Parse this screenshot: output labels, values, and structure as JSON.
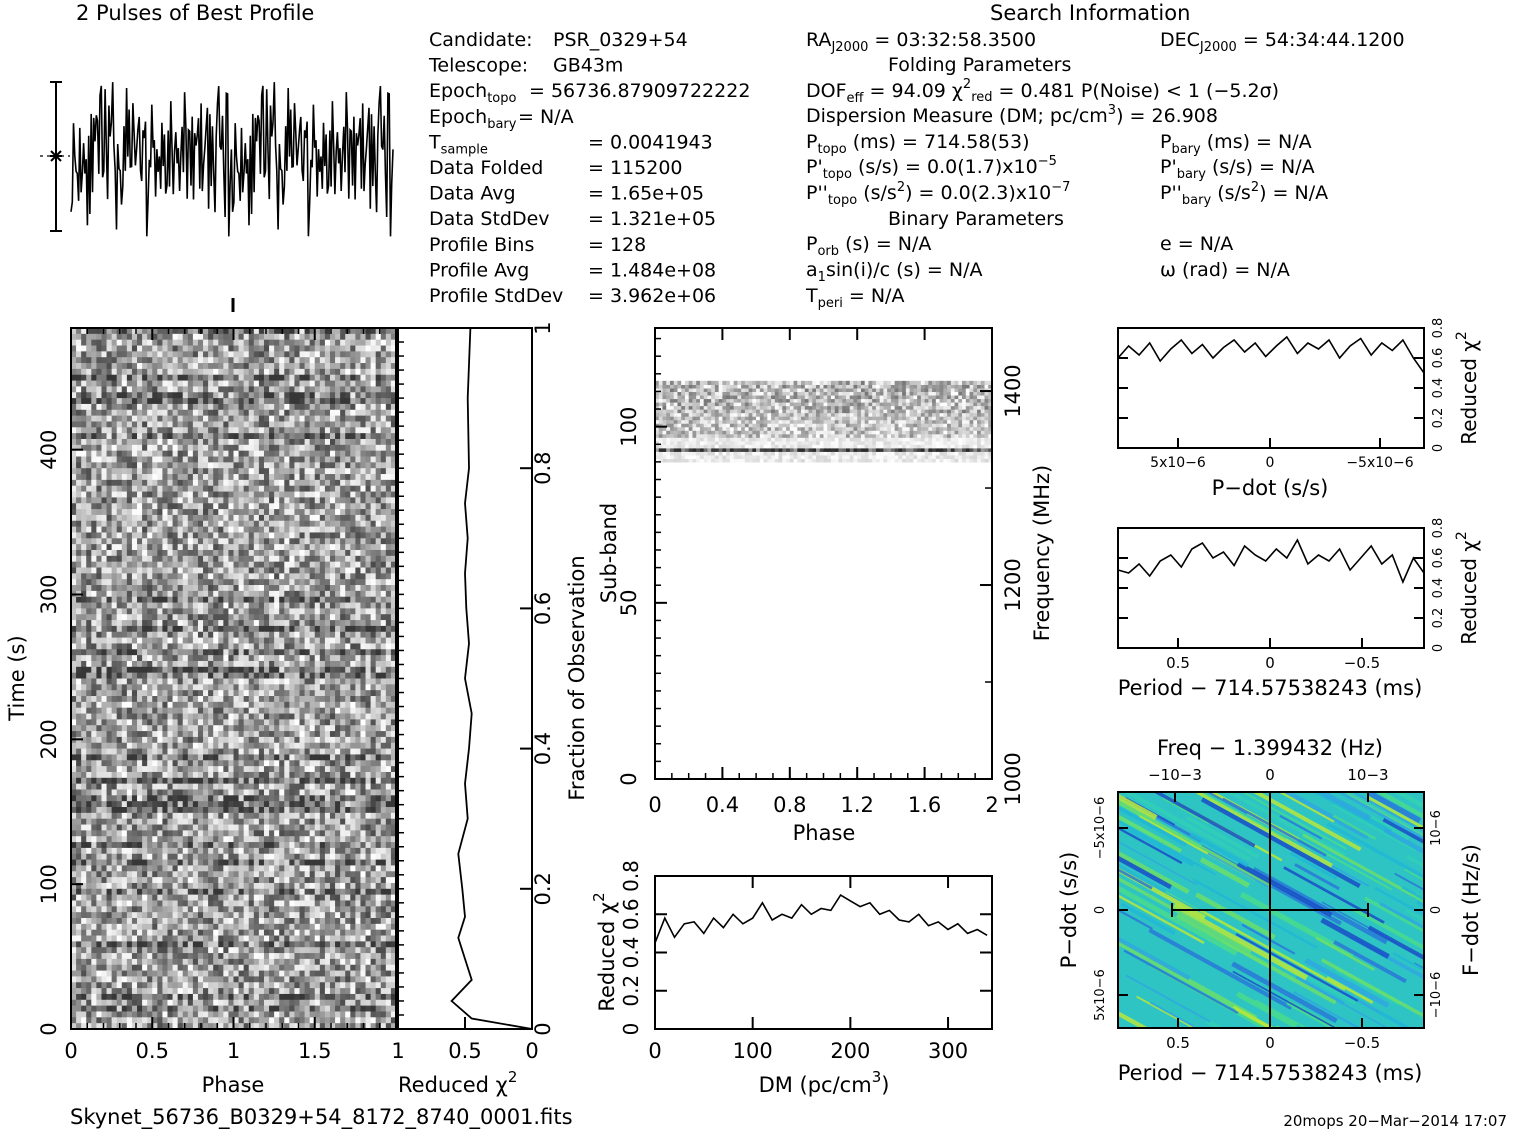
{
  "header": {
    "profile_title": "2 Pulses of Best Profile",
    "search_title": "Search Information",
    "folding_title": "Folding Parameters",
    "binary_title": "Binary Parameters"
  },
  "info_left": [
    {
      "k": "Candidate:",
      "v": "PSR_0329+54"
    },
    {
      "k": "Telescope:",
      "v": "GB43m"
    },
    {
      "k": "Epoch",
      "sub": "topo",
      "v": "= 56736.87909722222"
    },
    {
      "k": "Epoch",
      "sub": "bary",
      "v": "= N/A"
    },
    {
      "k": "T",
      "sub": "sample",
      "v": "=   0.0041943"
    },
    {
      "k": "Data Folded",
      "v": "=   115200"
    },
    {
      "k": "Data Avg",
      "v": "=   1.65e+05"
    },
    {
      "k": "Data StdDev",
      "v": "=   1.321e+05"
    },
    {
      "k": "Profile Bins",
      "v": "=   128"
    },
    {
      "k": "Profile Avg",
      "v": "=   1.484e+08"
    },
    {
      "k": "Profile StdDev",
      "v": "=   3.962e+06"
    }
  ],
  "search_info": {
    "ra": "RAJ2000 = 03:32:58.3500",
    "dec": "DECJ2000 = 54:34:44.1200",
    "dof": "DOFeff = 94.09  χ2red = 0.481  P(Noise) < 1  (−5.2σ)",
    "dm_line": "Dispersion Measure (DM; pc/cm3) = 26.908",
    "ptopo": "Ptopo (ms) =  714.58(53)",
    "pbary": "Pbary (ms) = N/A",
    "pdtopo": "P'topo (s/s) = 0.0(1.7)x10−5",
    "pdbary": "P'bary (s/s) = N/A",
    "pddtopo": "P''topo (s/s2) = 0.0(2.3)x10−7",
    "pddbary": "P''bary (s/s2) = N/A",
    "porb": "Porb (s) = N/A",
    "e": "e = N/A",
    "a1": "a1sin(i)/c (s) = N/A",
    "omega": "ω (rad) = N/A",
    "tperi": "Tperi = N/A"
  },
  "footer": {
    "filename": "Skynet_56736_B0329+54_8172_8740_0001.fits",
    "stamp": "20mops 20−Mar−2014 17:07"
  },
  "chart_data": [
    {
      "id": "profile",
      "type": "line",
      "title": "2 Pulses of Best Profile",
      "xlim": [
        0,
        2
      ],
      "note": "noisy profile, two pulses (phase 0-2)"
    },
    {
      "id": "time_phase",
      "type": "heatmap",
      "xlabel": "Phase",
      "ylabel": "Time (s)",
      "xlim": [
        0,
        2
      ],
      "ylim": [
        0,
        484
      ],
      "xticks": [
        "0",
        "0.5",
        "1",
        "1.5"
      ],
      "yticks": [
        "0",
        "100",
        "200",
        "300",
        "400"
      ]
    },
    {
      "id": "redchi_time",
      "type": "line",
      "xlabel": "Reduced χ2",
      "ylabel": "Fraction of Observation",
      "xlim": [
        1,
        0
      ],
      "ylim": [
        0,
        1
      ],
      "xticks": [
        "1",
        "0.5",
        "0"
      ],
      "yticks": [
        "0",
        "0.2",
        "0.4",
        "0.6",
        "0.8",
        "1"
      ],
      "x": [
        0.0,
        0.45,
        0.6,
        0.45,
        0.5,
        0.55,
        0.5,
        0.52,
        0.55,
        0.48,
        0.5,
        0.47,
        0.45,
        0.5,
        0.47,
        0.49,
        0.5,
        0.48,
        0.5,
        0.47,
        0.48,
        0.46
      ],
      "y": [
        0.0,
        0.015,
        0.04,
        0.07,
        0.1,
        0.13,
        0.16,
        0.2,
        0.25,
        0.3,
        0.35,
        0.4,
        0.45,
        0.5,
        0.55,
        0.6,
        0.65,
        0.7,
        0.75,
        0.8,
        0.9,
        1.0
      ]
    },
    {
      "id": "subband_phase",
      "type": "heatmap",
      "xlabel": "Phase",
      "ylabel": "Sub-band",
      "y2label": "Frequency (MHz)",
      "xlim": [
        0,
        2
      ],
      "ylim": [
        0,
        128
      ],
      "xticks": [
        "0",
        "0.4",
        "0.8",
        "1.2",
        "1.6",
        "2"
      ],
      "yticks": [
        "0",
        "50",
        "100"
      ],
      "y2ticks": [
        "1000",
        "1200",
        "1400"
      ]
    },
    {
      "id": "dm_chi",
      "type": "line",
      "xlabel": "DM (pc/cm3)",
      "ylabel": "Reduced χ2",
      "xlim": [
        0,
        345
      ],
      "ylim": [
        0,
        0.8
      ],
      "xticks": [
        "0",
        "100",
        "200",
        "300"
      ],
      "yticks": [
        "0",
        "0.2",
        "0.4",
        "0.6",
        "0.8"
      ],
      "x": [
        0,
        10,
        20,
        30,
        40,
        50,
        60,
        70,
        80,
        90,
        100,
        110,
        120,
        130,
        140,
        150,
        160,
        170,
        180,
        190,
        200,
        210,
        220,
        230,
        240,
        250,
        260,
        270,
        280,
        290,
        300,
        310,
        320,
        330,
        340
      ],
      "values": [
        0.45,
        0.58,
        0.48,
        0.55,
        0.56,
        0.5,
        0.58,
        0.53,
        0.6,
        0.55,
        0.58,
        0.66,
        0.57,
        0.6,
        0.58,
        0.65,
        0.6,
        0.63,
        0.62,
        0.7,
        0.67,
        0.64,
        0.66,
        0.6,
        0.62,
        0.57,
        0.56,
        0.6,
        0.54,
        0.56,
        0.52,
        0.55,
        0.5,
        0.52,
        0.49
      ]
    },
    {
      "id": "pdot_chi",
      "type": "line",
      "xlabel": "P−dot (s/s)",
      "ylabel": "Reduced χ2",
      "ylim": [
        0,
        0.8
      ],
      "xticks": [
        "5x10−6",
        "0",
        "−5x10−6"
      ],
      "yticks": [
        "0",
        "0.2",
        "0.4",
        "0.6",
        "0.8"
      ],
      "values": [
        0.6,
        0.68,
        0.62,
        0.7,
        0.58,
        0.66,
        0.72,
        0.63,
        0.69,
        0.6,
        0.67,
        0.72,
        0.64,
        0.7,
        0.61,
        0.68,
        0.74,
        0.63,
        0.7,
        0.66,
        0.72,
        0.6,
        0.68,
        0.73,
        0.62,
        0.7,
        0.65,
        0.72,
        0.6,
        0.5
      ]
    },
    {
      "id": "period_chi",
      "type": "line",
      "xlabel": "Period − 714.57538243 (ms)",
      "ylabel": "Reduced χ2",
      "ylim": [
        0,
        0.8
      ],
      "xticks": [
        "0.5",
        "0",
        "−0.5"
      ],
      "yticks": [
        "0",
        "0.2",
        "0.4",
        "0.6",
        "0.8"
      ],
      "values": [
        0.52,
        0.5,
        0.56,
        0.48,
        0.58,
        0.62,
        0.54,
        0.66,
        0.7,
        0.6,
        0.64,
        0.55,
        0.68,
        0.62,
        0.58,
        0.66,
        0.6,
        0.72,
        0.56,
        0.62,
        0.58,
        0.66,
        0.52,
        0.6,
        0.68,
        0.56,
        0.62,
        0.44,
        0.6,
        0.5
      ]
    },
    {
      "id": "pp_dot_plane",
      "type": "heatmap",
      "title": "Freq − 1.399432 (Hz)",
      "xlabel": "Period − 714.57538243 (ms)",
      "ylabel": "P−dot (s/s)",
      "y2label": "F−dot (Hz/s)",
      "xticks": [
        "0.5",
        "0",
        "−0.5"
      ],
      "x2ticks": [
        "−10−3",
        "0",
        "10−3"
      ],
      "yticks": [
        "−5x10−6",
        "0",
        "5x10−6"
      ],
      "y2ticks": [
        "10−6",
        "0",
        "−10−6"
      ]
    }
  ]
}
